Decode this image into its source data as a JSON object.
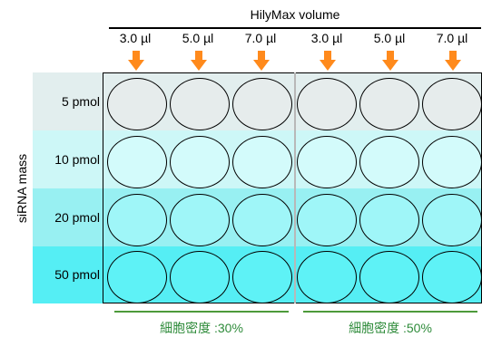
{
  "top": {
    "title": "HilyMax volume",
    "volumes": [
      "3.0 µl",
      "5.0 µl",
      "7.0 µl",
      "3.0 µl",
      "5.0 µl",
      "7.0 µl"
    ]
  },
  "axis": {
    "left_label": "siRNA mass"
  },
  "rows": [
    {
      "label": "5 pmol",
      "band_color": "#e2eeee",
      "well_color": "#e6ecec"
    },
    {
      "label": "10 pmol",
      "band_color": "#cdf7f7",
      "well_color": "#d3fbfb"
    },
    {
      "label": "20 pmol",
      "band_color": "#98f0f2",
      "well_color": "#9ff6f8"
    },
    {
      "label": "50 pmol",
      "band_color": "#55eef4",
      "well_color": "#5ef2f6"
    }
  ],
  "density": [
    "細胞密度 :30%",
    "細胞密度 :50%"
  ],
  "colors": {
    "arrow": "#ff8a1c",
    "density_text": "#2e8b3a",
    "density_line": "#4d9a3a"
  }
}
